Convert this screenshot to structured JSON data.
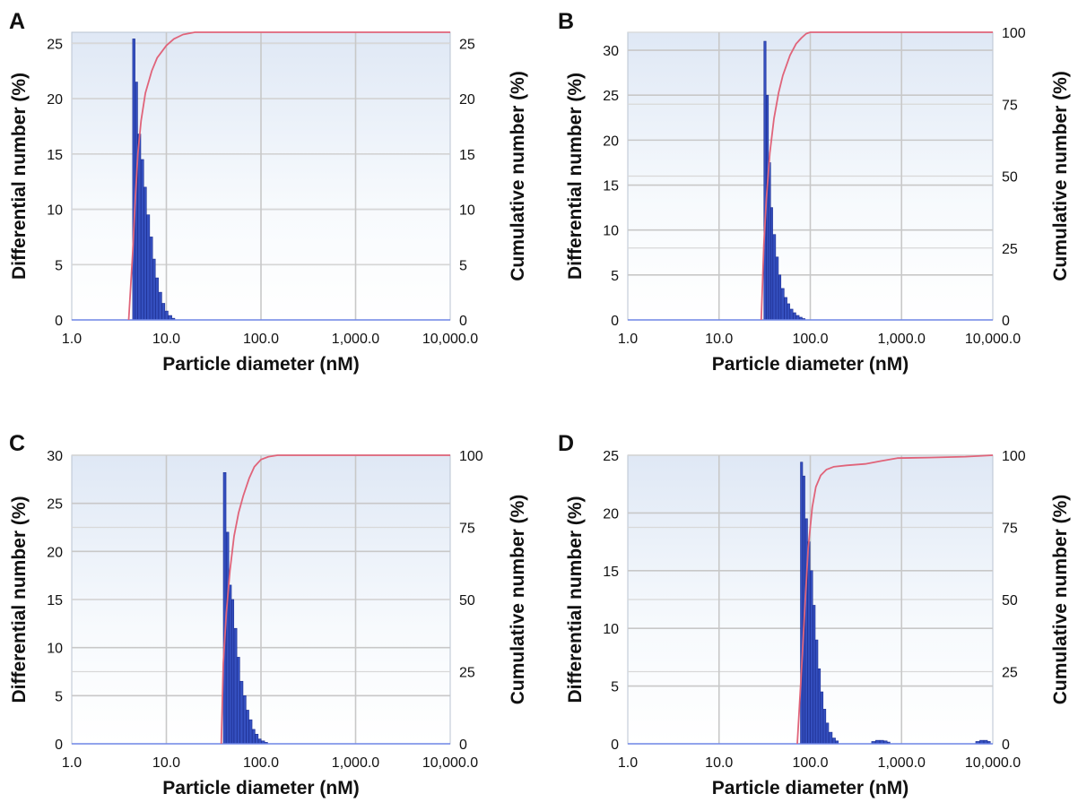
{
  "figure": {
    "xlabel": "Particle diameter (nM)",
    "ylabel_left": "Differential number (%)",
    "ylabel_right": "Cumulative number (%)",
    "x_tick_labels": [
      "1.0",
      "10.0",
      "100.0",
      "1,000.0",
      "10,000.0"
    ],
    "colors": {
      "bars": "#3550c0",
      "bar_edge": "#1d2f93",
      "cumulative": "#e0647a",
      "plot_bg_top": "#dfe8f5",
      "grid": "#c8c8c8"
    }
  },
  "chart_data": [
    {
      "panel": "A",
      "type": "bar",
      "x_scale": "log",
      "xlim": [
        1,
        10000
      ],
      "ylim_left": [
        0,
        26
      ],
      "yticks_left": [
        0,
        5,
        10,
        15,
        20,
        25
      ],
      "ylim_right": [
        0,
        26
      ],
      "yticks_right": [
        0,
        5,
        10,
        15,
        20,
        25
      ],
      "grid": true,
      "bars": {
        "x": [
          4.4,
          4.7,
          5.0,
          5.4,
          5.8,
          6.2,
          6.7,
          7.2,
          7.7,
          8.3,
          9.0,
          9.7,
          10.5,
          11.5
        ],
        "values": [
          25.4,
          21.5,
          16.8,
          14.5,
          12.0,
          9.5,
          7.5,
          5.5,
          3.8,
          2.5,
          1.5,
          0.8,
          0.4,
          0.15
        ]
      },
      "cumulative": {
        "x": [
          4.0,
          4.4,
          4.7,
          5.0,
          5.4,
          6.0,
          7.0,
          8.0,
          10.0,
          12.0,
          15.0,
          20.0,
          10000.0
        ],
        "values": [
          0,
          6,
          11,
          15,
          18,
          20.5,
          22.5,
          23.7,
          24.8,
          25.4,
          25.8,
          26.0,
          26.0
        ]
      }
    },
    {
      "panel": "B",
      "type": "bar",
      "x_scale": "log",
      "xlim": [
        1,
        10000
      ],
      "ylim_left": [
        0,
        32
      ],
      "yticks_left": [
        0,
        5,
        10,
        15,
        20,
        25,
        30
      ],
      "ylim_right": [
        0,
        100
      ],
      "yticks_right": [
        0,
        25,
        50,
        75,
        100
      ],
      "grid": true,
      "bars": {
        "x": [
          31,
          33,
          35,
          37,
          39,
          42,
          45,
          48,
          52,
          56,
          60,
          65,
          70,
          76,
          82
        ],
        "values": [
          31.0,
          25.0,
          17.5,
          12.5,
          9.5,
          7.0,
          5.0,
          3.5,
          2.5,
          1.8,
          1.2,
          0.8,
          0.5,
          0.3,
          0.15
        ]
      },
      "cumulative": {
        "x": [
          29,
          31,
          33,
          36,
          40,
          45,
          50,
          60,
          70,
          80,
          90,
          100,
          10000
        ],
        "values": [
          0,
          26,
          42,
          58,
          70,
          79,
          85,
          92,
          96,
          98,
          99.5,
          100,
          100
        ]
      }
    },
    {
      "panel": "C",
      "type": "bar",
      "x_scale": "log",
      "xlim": [
        1,
        10000
      ],
      "ylim_left": [
        0,
        30
      ],
      "yticks_left": [
        0,
        5,
        10,
        15,
        20,
        25,
        30
      ],
      "ylim_right": [
        0,
        100
      ],
      "yticks_right": [
        0,
        25,
        50,
        75,
        100
      ],
      "grid": true,
      "bars": {
        "x": [
          40,
          43,
          46,
          49,
          52,
          56,
          60,
          65,
          70,
          75,
          81,
          87,
          94,
          101,
          110
        ],
        "values": [
          28.2,
          22.0,
          16.5,
          15.0,
          12.0,
          9.0,
          6.5,
          5.0,
          3.5,
          2.5,
          1.5,
          1.0,
          0.5,
          0.3,
          0.15
        ]
      },
      "cumulative": {
        "x": [
          38,
          40,
          43,
          47,
          52,
          58,
          65,
          75,
          85,
          100,
          120,
          150,
          10000
        ],
        "values": [
          0,
          28,
          45,
          60,
          72,
          80,
          86,
          92,
          96,
          98.5,
          99.5,
          100,
          100
        ]
      }
    },
    {
      "panel": "D",
      "type": "bar",
      "x_scale": "log",
      "xlim": [
        1,
        10000
      ],
      "ylim_left": [
        0,
        25
      ],
      "yticks_left": [
        0,
        5,
        10,
        15,
        20,
        25
      ],
      "ylim_right": [
        0,
        100
      ],
      "yticks_right": [
        0,
        25,
        50,
        75,
        100
      ],
      "grid": true,
      "bars": {
        "x": [
          78,
          83,
          88,
          94,
          100,
          107,
          114,
          122,
          130,
          139,
          149,
          160,
          175,
          190,
          470,
          520,
          580,
          640,
          700,
          6500,
          7200,
          8000,
          8800
        ],
        "values": [
          24.4,
          23.2,
          19.5,
          17.5,
          15.0,
          12.0,
          9.0,
          6.5,
          4.5,
          3.0,
          1.8,
          1.0,
          0.5,
          0.25,
          0.2,
          0.3,
          0.3,
          0.25,
          0.15,
          0.2,
          0.3,
          0.3,
          0.2
        ]
      },
      "cumulative": {
        "x": [
          72,
          80,
          88,
          95,
          105,
          115,
          130,
          150,
          180,
          250,
          400,
          600,
          900,
          2000,
          5000,
          10000
        ],
        "values": [
          0,
          25,
          50,
          68,
          82,
          89,
          93,
          95,
          96,
          96.5,
          97,
          98,
          99,
          99.2,
          99.5,
          100
        ]
      }
    }
  ]
}
